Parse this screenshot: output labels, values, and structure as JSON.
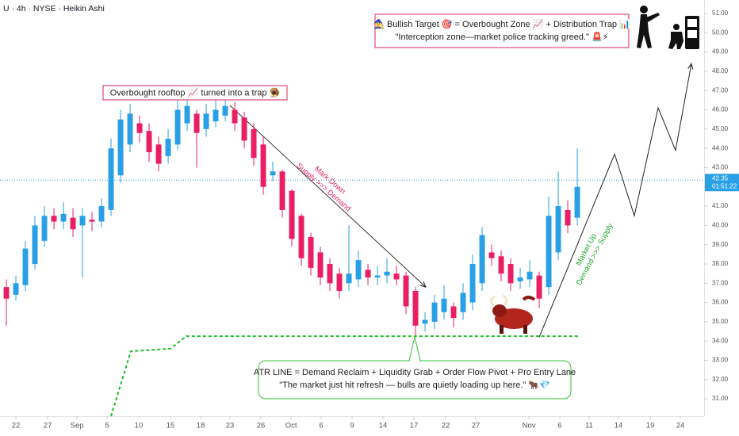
{
  "chart_data": {
    "type": "candlestick",
    "title": "U · 4h · NYSE · Heikin Ashi",
    "up_color": "#29a0e6",
    "down_color": "#ea1e63",
    "open": [
      36.8,
      36.4,
      36.9,
      38.0,
      39.2,
      40.5,
      40.2,
      40.4,
      40.0,
      40.3,
      40.2,
      40.8,
      42.6,
      44.2,
      45.3,
      44.9,
      44.2,
      43.6,
      44.2,
      45.3,
      45.8,
      45.0,
      45.4,
      45.7,
      46.0,
      45.6,
      45.0,
      44.2,
      42.6,
      42.8,
      41.8,
      40.5,
      39.4,
      38.6,
      38.0,
      37.5,
      37.0,
      37.2,
      37.7,
      37.3,
      37.4,
      37.5,
      37.4,
      36.6,
      34.9,
      35.0,
      35.5,
      35.8,
      35.5,
      36.0,
      37.0,
      38.6,
      38.4,
      38.0,
      37.1,
      37.2,
      37.4,
      36.8,
      38.6,
      40.8,
      40.4
    ],
    "high": [
      37.2,
      37.4,
      39.2,
      40.5,
      41.0,
      40.9,
      41.2,
      40.9,
      40.9,
      40.7,
      41.4,
      44.5,
      46.0,
      46.3,
      45.7,
      45.3,
      44.6,
      45.0,
      46.6,
      46.8,
      46.0,
      46.3,
      46.6,
      46.7,
      46.4,
      45.9,
      45.3,
      44.6,
      43.3,
      42.9,
      41.9,
      40.6,
      39.6,
      38.9,
      38.3,
      37.8,
      40.0,
      38.7,
      38.0,
      37.9,
      38.3,
      37.9,
      37.6,
      36.8,
      35.5,
      36.4,
      36.9,
      36.0,
      37.0,
      38.5,
      39.9,
      39.0,
      38.7,
      38.3,
      37.8,
      38.2,
      37.6,
      41.5,
      42.8,
      41.3,
      44.0
    ],
    "low": [
      34.8,
      36.1,
      36.6,
      37.7,
      38.9,
      39.8,
      39.8,
      39.4,
      37.3,
      39.7,
      39.9,
      40.5,
      42.2,
      43.8,
      44.3,
      43.3,
      42.8,
      43.2,
      43.9,
      44.9,
      43.0,
      44.6,
      45.1,
      45.4,
      44.9,
      44.0,
      43.1,
      41.6,
      42.3,
      40.4,
      38.9,
      37.9,
      37.4,
      36.9,
      36.6,
      36.2,
      36.6,
      36.8,
      36.9,
      36.9,
      37.0,
      36.9,
      35.4,
      34.3,
      34.5,
      34.6,
      35.1,
      34.7,
      35.1,
      35.6,
      36.6,
      37.9,
      37.1,
      36.6,
      36.7,
      36.8,
      35.7,
      36.4,
      38.2,
      39.6,
      40.0
    ],
    "close": [
      36.2,
      37.0,
      38.8,
      40.0,
      40.5,
      40.2,
      40.6,
      39.8,
      40.5,
      40.2,
      41.0,
      44.0,
      45.5,
      45.8,
      44.8,
      43.8,
      43.2,
      44.5,
      46.0,
      46.2,
      44.8,
      45.8,
      46.0,
      46.2,
      45.3,
      44.4,
      43.5,
      42.0,
      42.8,
      40.8,
      39.3,
      38.3,
      37.8,
      37.3,
      37.0,
      36.6,
      37.5,
      38.2,
      37.3,
      37.4,
      37.6,
      37.2,
      35.8,
      34.8,
      35.1,
      36.0,
      36.2,
      35.2,
      36.5,
      38.0,
      39.5,
      38.3,
      37.5,
      37.0,
      37.3,
      37.6,
      36.2,
      40.5,
      41.0,
      40.0,
      42.0
    ],
    "xlim": [
      -0.67,
      73.33
    ],
    "xticks": [
      {
        "value": 1,
        "label": "22"
      },
      {
        "value": 4.33,
        "label": "27"
      },
      {
        "value": 7.42,
        "label": "Sep"
      },
      {
        "value": 10.58,
        "label": "5"
      },
      {
        "value": 13.92,
        "label": "10"
      },
      {
        "value": 17.25,
        "label": "15"
      },
      {
        "value": 20.42,
        "label": "18"
      },
      {
        "value": 23.5,
        "label": "23"
      },
      {
        "value": 26.75,
        "label": "26"
      },
      {
        "value": 29.92,
        "label": "Oct"
      },
      {
        "value": 33.08,
        "label": "6"
      },
      {
        "value": 36.33,
        "label": "9"
      },
      {
        "value": 39.58,
        "label": "14"
      },
      {
        "value": 42.83,
        "label": "17"
      },
      {
        "value": 46.17,
        "label": "22"
      },
      {
        "value": 49.33,
        "label": "27"
      },
      {
        "value": 54.92,
        "label": "Nov"
      },
      {
        "value": 58.17,
        "label": "6"
      },
      {
        "value": 61.25,
        "label": "11"
      },
      {
        "value": 64.33,
        "label": "14"
      },
      {
        "value": 67.67,
        "label": "19"
      },
      {
        "value": 70.83,
        "label": "24"
      }
    ],
    "ylim": [
      30.1,
      51.7
    ],
    "yticks": [
      {
        "value": 31,
        "label": "31.00"
      },
      {
        "value": 32,
        "label": "32.00"
      },
      {
        "value": 33,
        "label": "33.00"
      },
      {
        "value": 34,
        "label": "34.00"
      },
      {
        "value": 35,
        "label": "35.00"
      },
      {
        "value": 36,
        "label": "36.00"
      },
      {
        "value": 37,
        "label": "37.00"
      },
      {
        "value": 38,
        "label": "38.00"
      },
      {
        "value": 39,
        "label": "39.00"
      },
      {
        "value": 40,
        "label": "40.00"
      },
      {
        "value": 41,
        "label": "41.00"
      },
      {
        "value": 42,
        "label": "42.00"
      },
      {
        "value": 43,
        "label": "43.00"
      },
      {
        "value": 44,
        "label": "44.00"
      },
      {
        "value": 45,
        "label": "45.00"
      },
      {
        "value": 46,
        "label": "46.00"
      },
      {
        "value": 47,
        "label": "47.00"
      },
      {
        "value": 48,
        "label": "48.00"
      },
      {
        "value": 49,
        "label": "49.00"
      },
      {
        "value": 50,
        "label": "50.00"
      },
      {
        "value": 51,
        "label": "51.00"
      }
    ],
    "last_price": {
      "value": 42.35,
      "label": "42.35",
      "countdown": "01:51:22"
    },
    "lines": [
      {
        "color": "#333333",
        "x": [
          23.5,
          44.08
        ],
        "values": [
          46.23,
          36.8
        ],
        "arrow": true
      },
      {
        "color": "#222222",
        "x": [
          56,
          63.92,
          66,
          68.5,
          70.33,
          72
        ],
        "values": [
          34.2,
          43.7,
          40.5,
          46.1,
          43.9,
          48.4
        ],
        "arrow": true
      },
      {
        "color": "#1fbf2a",
        "x": [
          11,
          13.08,
          17.25,
          18.92,
          60.17
        ],
        "values": [
          30.1,
          33.47,
          33.6,
          34.25,
          34.25
        ],
        "dash": true
      }
    ],
    "annotations": {
      "rooftop": "Overbought rooftop 📈 turned into a trap 🪤",
      "target": [
        "🧙 Bullish Target 🎯 = Overbought Zone 📈 + Distribution Trap 📊",
        "\"Interception zone—market police tracking greed.\" 🚨⚡"
      ],
      "mark_down": [
        "Mark Down",
        "Supply >>> Demand"
      ],
      "market_up": [
        "Market Up",
        "Demand >>> Supply"
      ],
      "atr": [
        "ATR LINE = Demand Reclaim + Liquidity Grab + Order Flow Pivot + Pro Entry Lane",
        "\"The market just hit refresh — bulls are quietly loading up here.\" 🐂💎"
      ]
    }
  }
}
